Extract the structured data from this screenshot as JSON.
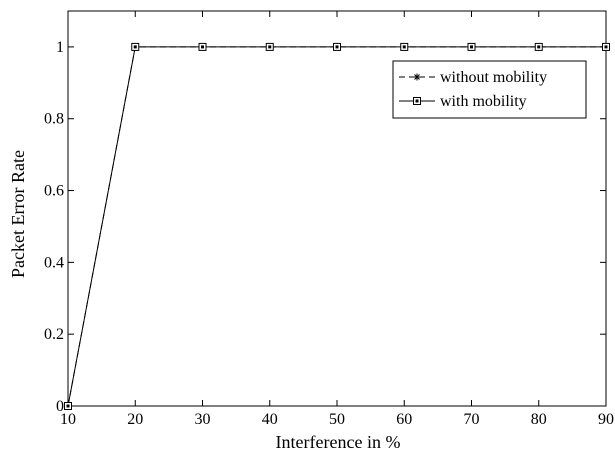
{
  "chart_data": {
    "type": "line",
    "title": "",
    "xlabel": "Interference in %",
    "ylabel": "Packet Error Rate",
    "x": [
      10,
      20,
      30,
      40,
      50,
      60,
      70,
      80,
      90
    ],
    "xlim": [
      10,
      90
    ],
    "ylim": [
      0,
      1.1
    ],
    "xticks": [
      10,
      20,
      30,
      40,
      50,
      60,
      70,
      80,
      90
    ],
    "yticks": [
      0,
      0.2,
      0.4,
      0.6,
      0.8,
      1
    ],
    "grid": false,
    "legend_position": "top-right",
    "series": [
      {
        "name": "without mobility",
        "values": [
          0,
          1,
          1,
          1,
          1,
          1,
          1,
          1,
          1
        ],
        "line_style": "dashed",
        "marker": "star",
        "color": "#000000"
      },
      {
        "name": "with mobility",
        "values": [
          0,
          1,
          1,
          1,
          1,
          1,
          1,
          1,
          1
        ],
        "line_style": "solid",
        "marker": "square-dot",
        "color": "#000000"
      }
    ]
  }
}
